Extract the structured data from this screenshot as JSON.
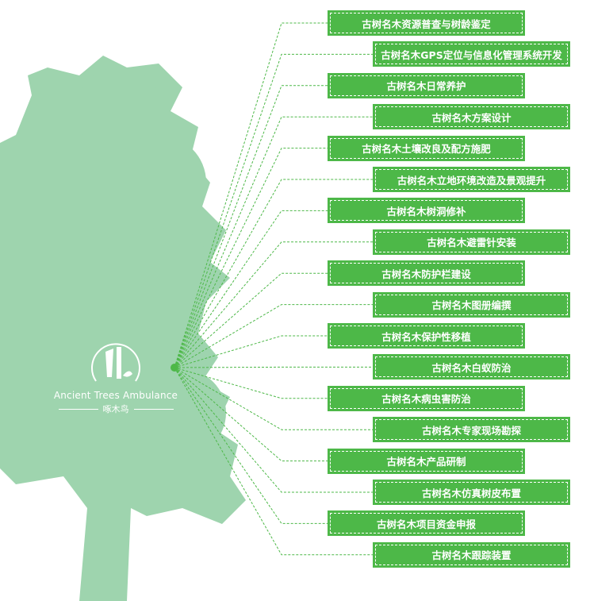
{
  "colors": {
    "box": "#4db848",
    "tree": "#9ed4ae",
    "line": "#4db848"
  },
  "logo": {
    "icon": "woodpecker-icon",
    "name_en": "Ancient Trees Ambulance",
    "name_cn": "啄木鸟"
  },
  "items": [
    "古树名木资源普查与树龄鉴定",
    "古树名木GPS定位与信息化管理系统开发",
    "古树名木日常养护",
    "古树名木方案设计",
    "古树名木土壤改良及配方施肥",
    "古树名木立地环境改造及景观提升",
    "古树名木树洞修补",
    "古树名木避雷针安装",
    "古树名木防护栏建设",
    "古树名木图册编撰",
    "古树名木保护性移植",
    "古树名木白蚁防治",
    "古树名木病虫害防治",
    "古树名木专家现场勘探",
    "古树名木产品研制",
    "古树名木仿真树皮布置",
    "古树名木项目资金申报",
    "古树名木跟踪装置"
  ]
}
